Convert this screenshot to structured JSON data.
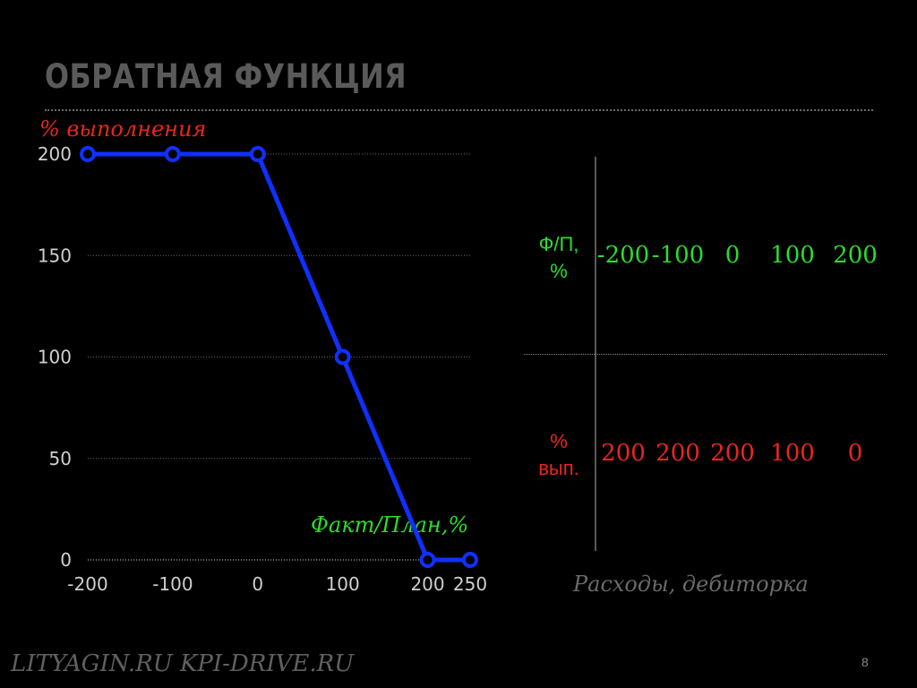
{
  "slide": {
    "title": "ОБРАТНАЯ ФУНКЦИЯ",
    "footer": "LITYAGIN.RU  KPI-DRIVE.RU",
    "page_number": "8"
  },
  "chart_data": {
    "type": "line",
    "ylabel": "% выполнения",
    "xlabel": "Факт/План,%",
    "x_ticks": [
      "-200",
      "-100",
      "0",
      "100",
      "200",
      "250"
    ],
    "y_ticks": [
      "200",
      "150",
      "100",
      "50",
      "0"
    ],
    "xlim": [
      -200,
      250
    ],
    "ylim": [
      0,
      200
    ],
    "grid": true,
    "series": [
      {
        "x": [
          -200,
          -100,
          0,
          100,
          200,
          250
        ],
        "y": [
          200,
          200,
          200,
          100,
          0,
          0
        ],
        "color": "#1030ff"
      }
    ]
  },
  "table": {
    "row_labels": [
      "Ф/П, %",
      "% вып."
    ],
    "fp_values": [
      "-200",
      "-100",
      "0",
      "100",
      "200"
    ],
    "vyp_values": [
      "200",
      "200",
      "200",
      "100",
      "0"
    ],
    "caption": "Расходы, дебиторка"
  },
  "colors": {
    "line": "#1030ff",
    "green": "#2cdc2c",
    "red": "#e8261e",
    "grey": "#5a5a5a"
  }
}
